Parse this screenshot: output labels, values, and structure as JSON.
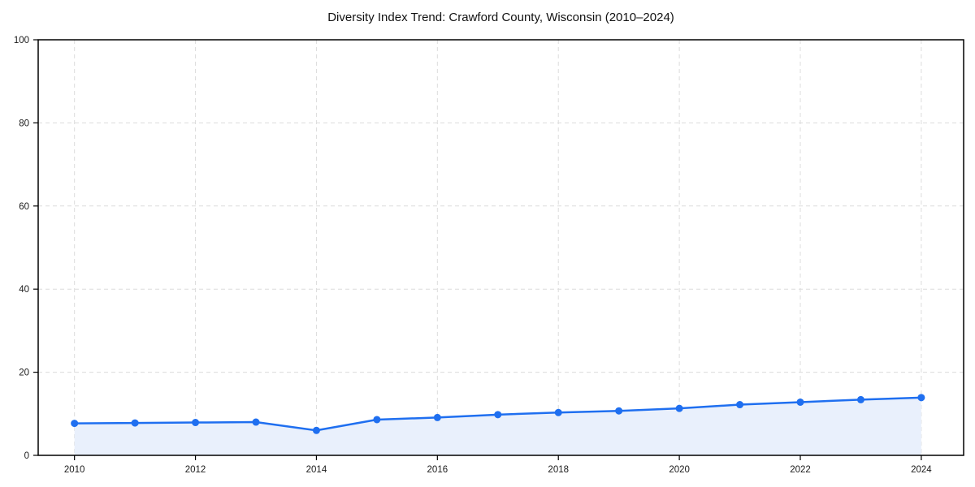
{
  "chart_title": "Diversity Index Trend: Crawford County, Wisconsin (2010–2024)",
  "chart_data": {
    "type": "area",
    "title": "Diversity Index Trend: Crawford County, Wisconsin (2010–2024)",
    "x": [
      2010,
      2011,
      2012,
      2013,
      2014,
      2015,
      2016,
      2017,
      2018,
      2019,
      2020,
      2021,
      2022,
      2023,
      2024
    ],
    "series": [
      {
        "name": "Diversity Index",
        "values": [
          7.7,
          7.8,
          7.9,
          8.0,
          6.0,
          8.6,
          9.1,
          9.8,
          10.3,
          10.7,
          11.3,
          12.2,
          12.8,
          13.4,
          13.9
        ]
      }
    ],
    "xlabel": "",
    "ylabel": "",
    "xlim": [
      2009.4,
      2024.7
    ],
    "ylim": [
      0,
      100
    ],
    "y_ticks": [
      0,
      20,
      40,
      60,
      80,
      100
    ],
    "x_ticks": [
      2010,
      2012,
      2014,
      2016,
      2018,
      2020,
      2022,
      2024
    ],
    "grid": "dashed, horizontal at y ticks and vertical at x ticks",
    "legend_position": "none",
    "markers": "filled circles at every data point",
    "colors": {
      "line": "#1f6ff0",
      "marker": "#1f6ff0",
      "area_fill": "#e9f0fc",
      "gridline": "#dcdcdc",
      "spine": "#000000",
      "tick_label": "#1a1a1a",
      "background": "#ffffff"
    }
  }
}
